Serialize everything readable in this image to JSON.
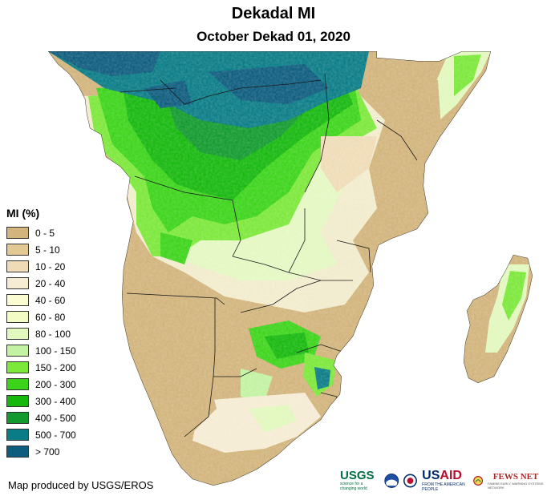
{
  "title": "Dekadal MI",
  "subtitle": "October Dekad 01, 2020",
  "legend": {
    "title": "MI (%)",
    "items": [
      {
        "label": "0 - 5",
        "color": "#d2b47c"
      },
      {
        "label": "5 - 10",
        "color": "#e2c993"
      },
      {
        "label": "10 - 20",
        "color": "#efdcb6"
      },
      {
        "label": "20 - 40",
        "color": "#f6ecd4"
      },
      {
        "label": "40 - 60",
        "color": "#fcfcd2"
      },
      {
        "label": "60 - 80",
        "color": "#f2fcc4"
      },
      {
        "label": "80 - 100",
        "color": "#e2f8be"
      },
      {
        "label": "100 - 150",
        "color": "#c2f2a2"
      },
      {
        "label": "150 - 200",
        "color": "#7ce83a"
      },
      {
        "label": "200 - 300",
        "color": "#3cd41a"
      },
      {
        "label": "300 - 400",
        "color": "#16b80e"
      },
      {
        "label": "400 - 500",
        "color": "#129a2e"
      },
      {
        "label": "500 - 700",
        "color": "#0a7c86"
      },
      {
        "label": "> 700",
        "color": "#0e5c7e"
      }
    ]
  },
  "credit": "Map produced by USGS/EROS",
  "logos": {
    "usgs": "USGS",
    "usgs_tagline": "science for a changing world",
    "usaid_a": "US",
    "usaid_b": "AID",
    "usaid_tagline": "FROM THE AMERICAN PEOPLE",
    "fews": "FEWS NET",
    "fews_tagline": "FAMINE EARLY WARNING SYSTEMS NETWORK"
  }
}
